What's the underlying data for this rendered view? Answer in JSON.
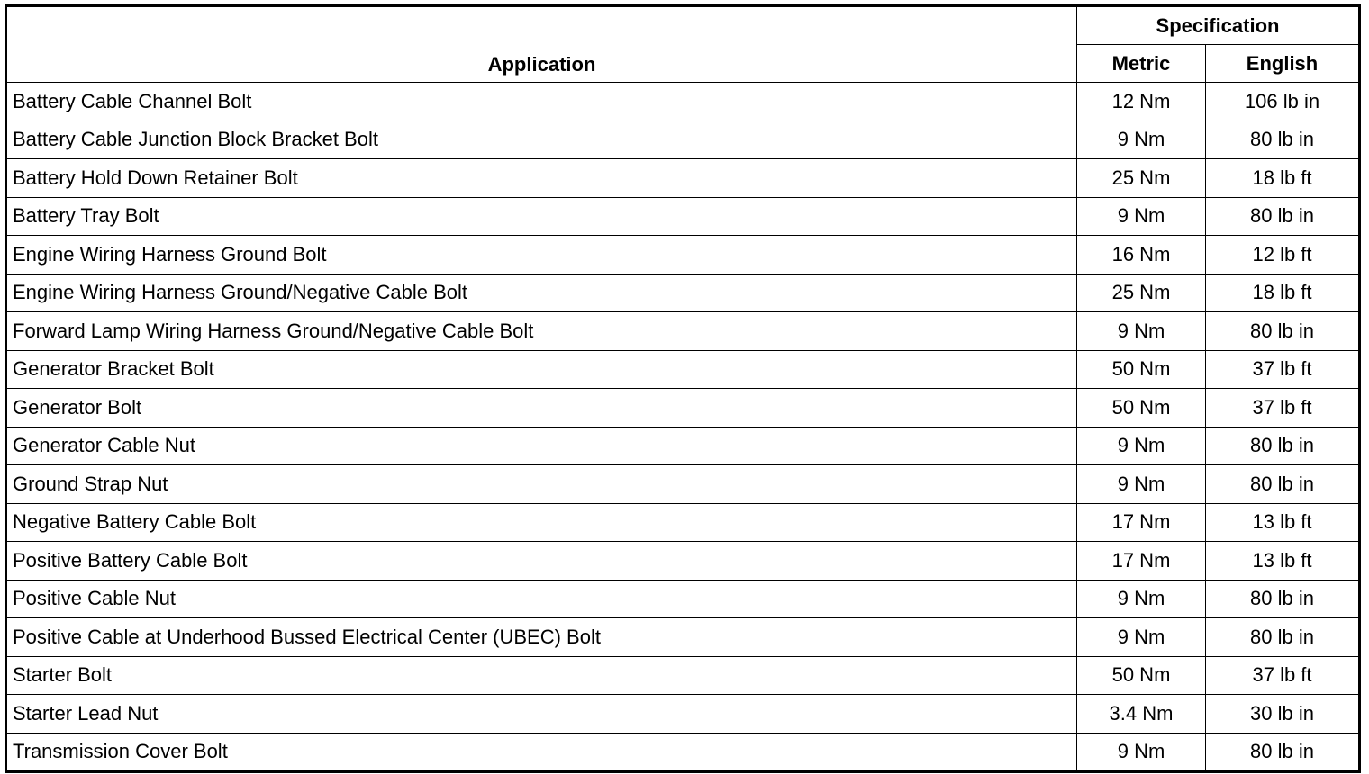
{
  "header": {
    "application": "Application",
    "specification": "Specification",
    "metric": "Metric",
    "english": "English"
  },
  "rows": [
    {
      "application": "Battery Cable Channel Bolt",
      "metric": "12 Nm",
      "english": "106 lb in"
    },
    {
      "application": "Battery Cable Junction Block Bracket Bolt",
      "metric": "9 Nm",
      "english": "80 lb in"
    },
    {
      "application": "Battery Hold Down Retainer Bolt",
      "metric": "25 Nm",
      "english": "18 lb ft"
    },
    {
      "application": "Battery Tray Bolt",
      "metric": "9 Nm",
      "english": "80 lb in"
    },
    {
      "application": "Engine Wiring Harness Ground Bolt",
      "metric": "16 Nm",
      "english": "12 lb ft"
    },
    {
      "application": "Engine Wiring Harness Ground/Negative Cable Bolt",
      "metric": "25 Nm",
      "english": "18 lb ft"
    },
    {
      "application": "Forward Lamp Wiring Harness Ground/Negative Cable Bolt",
      "metric": "9 Nm",
      "english": "80 lb in"
    },
    {
      "application": "Generator Bracket Bolt",
      "metric": "50 Nm",
      "english": "37 lb ft"
    },
    {
      "application": "Generator Bolt",
      "metric": "50 Nm",
      "english": "37 lb ft"
    },
    {
      "application": "Generator Cable Nut",
      "metric": "9 Nm",
      "english": "80 lb in"
    },
    {
      "application": "Ground Strap Nut",
      "metric": "9 Nm",
      "english": "80 lb in"
    },
    {
      "application": "Negative Battery Cable Bolt",
      "metric": "17 Nm",
      "english": "13 lb ft"
    },
    {
      "application": "Positive Battery Cable Bolt",
      "metric": "17 Nm",
      "english": "13 lb ft"
    },
    {
      "application": "Positive Cable Nut",
      "metric": "9 Nm",
      "english": "80 lb in"
    },
    {
      "application": "Positive Cable at Underhood Bussed Electrical Center (UBEC) Bolt",
      "metric": "9 Nm",
      "english": "80 lb in"
    },
    {
      "application": "Starter Bolt",
      "metric": "50 Nm",
      "english": "37 lb ft"
    },
    {
      "application": "Starter Lead Nut",
      "metric": "3.4 Nm",
      "english": "30 lb in"
    },
    {
      "application": "Transmission Cover Bolt",
      "metric": "9 Nm",
      "english": "80 lb in"
    }
  ]
}
